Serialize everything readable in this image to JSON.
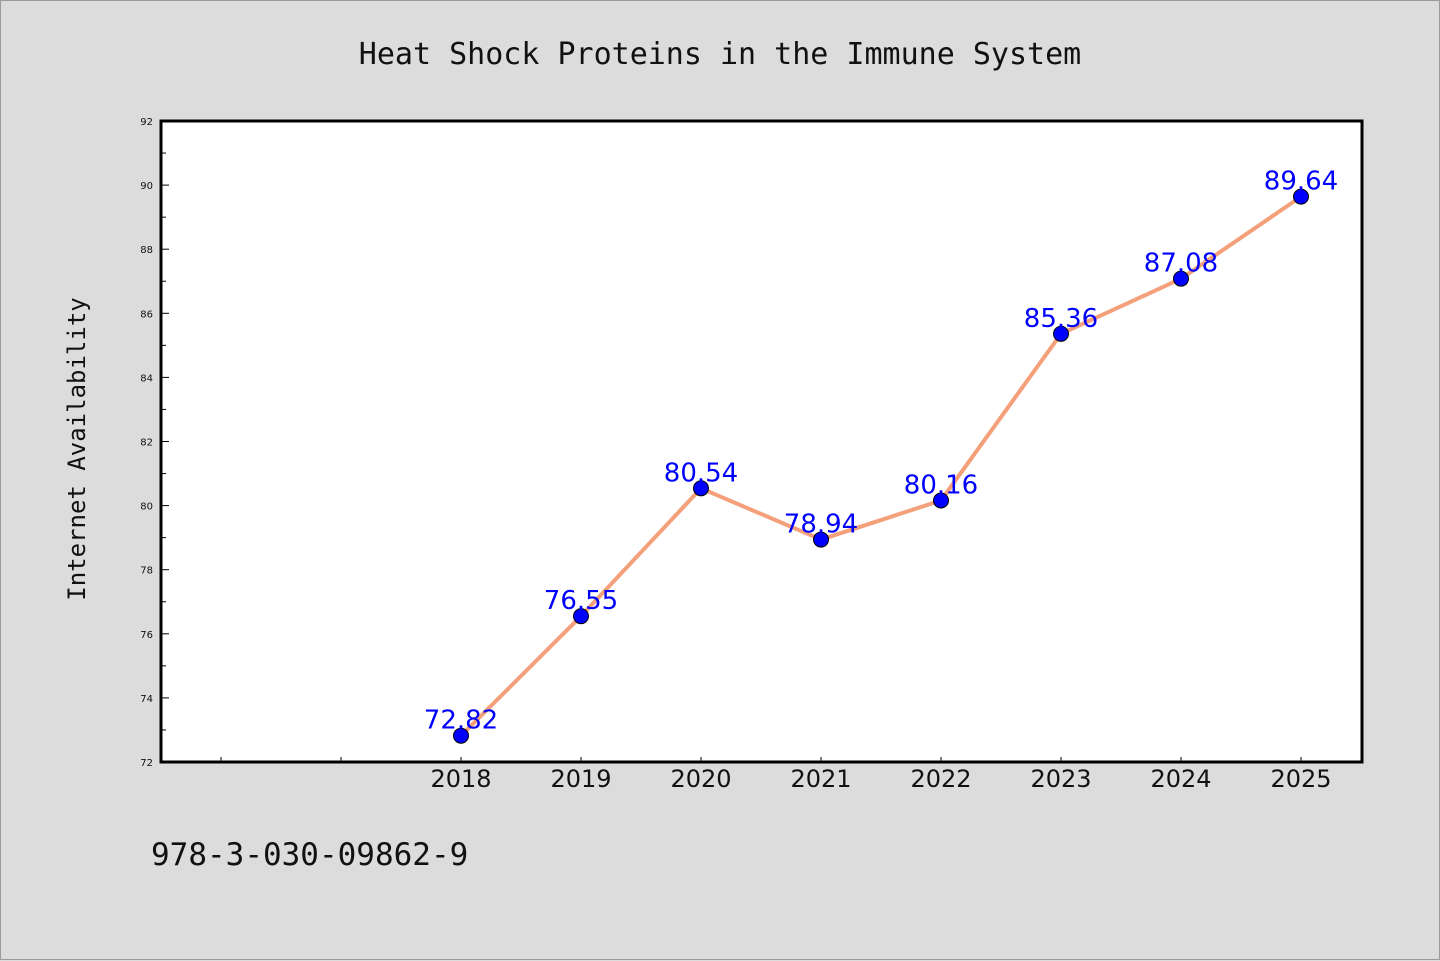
{
  "chart_data": {
    "type": "line",
    "title": "Heat Shock Proteins in the Immune System",
    "xlabel": "",
    "ylabel": "Internet Availability",
    "x": [
      "2018",
      "2019",
      "2020",
      "2021",
      "2022",
      "2023",
      "2024",
      "2025"
    ],
    "series": [
      {
        "values": [
          72.82,
          76.55,
          80.54,
          78.94,
          80.16,
          85.36,
          87.08,
          89.64
        ],
        "labels": [
          "72.82",
          "76.55",
          "80.54",
          "78.94",
          "80.16",
          "85.36",
          "87.08",
          "89.64"
        ]
      }
    ],
    "ylim": [
      72,
      92
    ],
    "yticks": [
      "72",
      "74",
      "76",
      "78",
      "80",
      "82",
      "84",
      "86",
      "88",
      "90",
      "92"
    ],
    "grid": false,
    "legend": "none",
    "colors": {
      "line": "#f4a07a",
      "marker": "#0000ff",
      "data_label": "#0000ff",
      "background": "#dcdcdc",
      "plot_area": "#ffffff"
    }
  },
  "footer": {
    "isbn": "978-3-030-09862-9"
  }
}
